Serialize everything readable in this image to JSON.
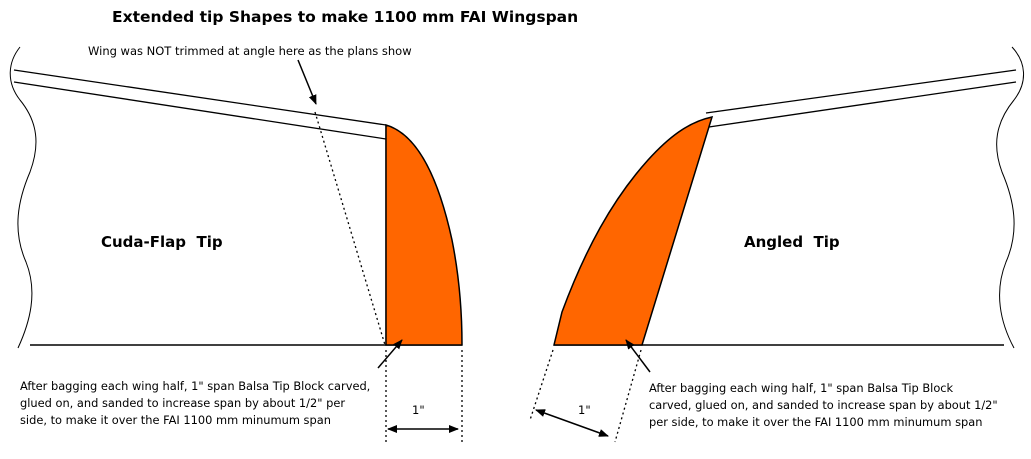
{
  "title": "Extended tip Shapes to make 1100 mm FAI Wingspan",
  "note_top": "Wing was NOT trimmed at angle here as the plans show",
  "left_tip": {
    "label": "Cuda-Flap  Tip",
    "caption_lines": [
      "After bagging each wing half, 1\" span Balsa Tip Block carved,",
      "glued on, and sanded to increase span by about 1/2\" per",
      "side, to make it over the FAI 1100 mm minumum span"
    ],
    "dimension": "1\""
  },
  "right_tip": {
    "label": "Angled  Tip",
    "caption_lines": [
      "After bagging each wing half, 1\" span Balsa Tip Block",
      "carved, glued on, and sanded to increase span by about 1/2\"",
      "per side, to make it over the FAI 1100 mm minumum span"
    ],
    "dimension": "1\""
  },
  "colors": {
    "tip_block": "#ff6600",
    "outline": "#000000"
  }
}
